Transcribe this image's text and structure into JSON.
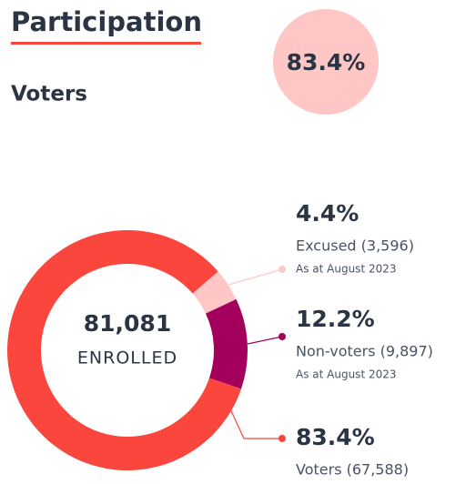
{
  "header": {
    "title": "Participation",
    "subtitle": "Voters",
    "badge": "83.4%"
  },
  "chart_data": {
    "type": "donut",
    "categories": [
      "Excused (3,596)",
      "Non-voters (9,897)",
      "Voters (67,588)"
    ],
    "values": [
      4.4,
      12.2,
      83.4
    ],
    "value_labels": [
      "4.4%",
      "12.2%",
      "83.4%"
    ],
    "footnotes": [
      "As at August 2023",
      "As at August 2023",
      null
    ],
    "colors": [
      "#ffc6c6",
      "#a3005e",
      "#fa463c"
    ],
    "total": "81,081",
    "total_label": "ENROLLED"
  }
}
